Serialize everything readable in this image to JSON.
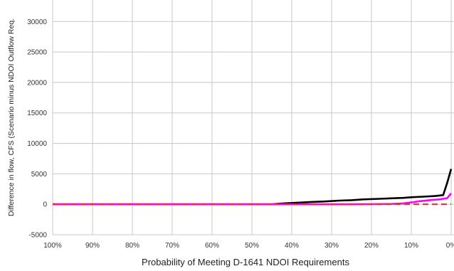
{
  "chart_data": {
    "type": "line",
    "title": "",
    "xlabel": "Probability of Meeting D-1641 NDOI Requirements",
    "ylabel": "Difference in flow, CFS (Scenario minus NDOI Outflow Req.",
    "x_reversed": true,
    "xlim": [
      0,
      100
    ],
    "ylim": [
      -5000,
      34000
    ],
    "grid": true,
    "legend": "none",
    "x_ticks": [
      {
        "value": 100,
        "label": "100%"
      },
      {
        "value": 90,
        "label": "90%"
      },
      {
        "value": 80,
        "label": "80%"
      },
      {
        "value": 70,
        "label": "70%"
      },
      {
        "value": 60,
        "label": "60%"
      },
      {
        "value": 50,
        "label": "50%"
      },
      {
        "value": 40,
        "label": "40%"
      },
      {
        "value": 30,
        "label": "30%"
      },
      {
        "value": 20,
        "label": "20%"
      },
      {
        "value": 10,
        "label": "10%"
      },
      {
        "value": 0,
        "label": "0%"
      }
    ],
    "y_ticks": [
      {
        "value": 30000,
        "label": "30000"
      },
      {
        "value": 25000,
        "label": "25000"
      },
      {
        "value": 20000,
        "label": "20000"
      },
      {
        "value": 15000,
        "label": "15000"
      },
      {
        "value": 10000,
        "label": "10000"
      },
      {
        "value": 5000,
        "label": "5000"
      },
      {
        "value": 0,
        "label": "0"
      },
      {
        "value": -5000,
        "label": "-5000"
      }
    ],
    "series": [
      {
        "color": "#000000",
        "style": "solid",
        "x": [
          100,
          90,
          80,
          70,
          60,
          50,
          45,
          42,
          38,
          35,
          32,
          28,
          25,
          22,
          18,
          15,
          12,
          10,
          7,
          4,
          2,
          1,
          0
        ],
        "y": [
          0,
          0,
          0,
          0,
          0,
          0,
          0,
          150,
          280,
          380,
          450,
          600,
          680,
          800,
          900,
          980,
          1050,
          1150,
          1250,
          1350,
          1500,
          3500,
          5800
        ]
      },
      {
        "color": "#ff00ff",
        "style": "solid",
        "x": [
          100,
          90,
          80,
          70,
          60,
          50,
          40,
          30,
          25,
          20,
          15,
          12,
          10,
          8,
          5,
          3,
          1,
          0
        ],
        "y": [
          0,
          0,
          0,
          0,
          0,
          0,
          0,
          0,
          0,
          20,
          60,
          150,
          300,
          500,
          700,
          800,
          1000,
          1800
        ]
      },
      {
        "color": "#e03030",
        "style": "dashed",
        "x": [
          100,
          90,
          80,
          70,
          60,
          50,
          40,
          30,
          20,
          10,
          0
        ],
        "y": [
          0,
          0,
          0,
          0,
          0,
          0,
          0,
          0,
          0,
          0,
          0
        ]
      }
    ]
  }
}
